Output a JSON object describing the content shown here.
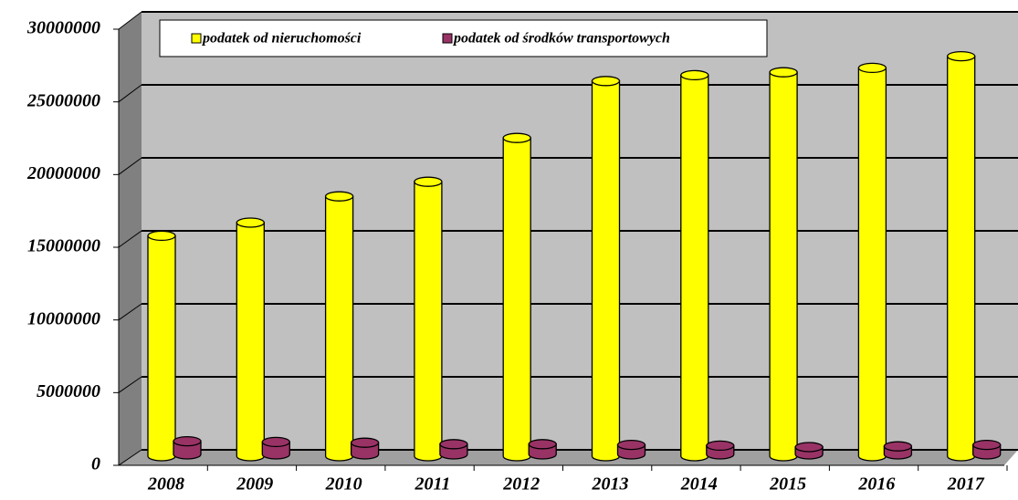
{
  "chart_data": {
    "type": "bar",
    "categories": [
      "2008",
      "2009",
      "2010",
      "2011",
      "2012",
      "2013",
      "2014",
      "2015",
      "2016",
      "2017"
    ],
    "series": [
      {
        "name": "podatek od nieruchomości",
        "color": "#ffff00",
        "values": [
          15100000,
          16000000,
          17800000,
          18800000,
          21800000,
          25700000,
          26100000,
          26300000,
          26600000,
          27400000
        ]
      },
      {
        "name": "podatek od środków transportowych",
        "color": "#993366",
        "values": [
          900000,
          850000,
          800000,
          700000,
          700000,
          650000,
          600000,
          500000,
          550000,
          650000
        ]
      }
    ],
    "ylim": [
      0,
      30000000
    ],
    "yticks": [
      0,
      5000000,
      10000000,
      15000000,
      20000000,
      25000000,
      30000000
    ],
    "grid": true
  }
}
